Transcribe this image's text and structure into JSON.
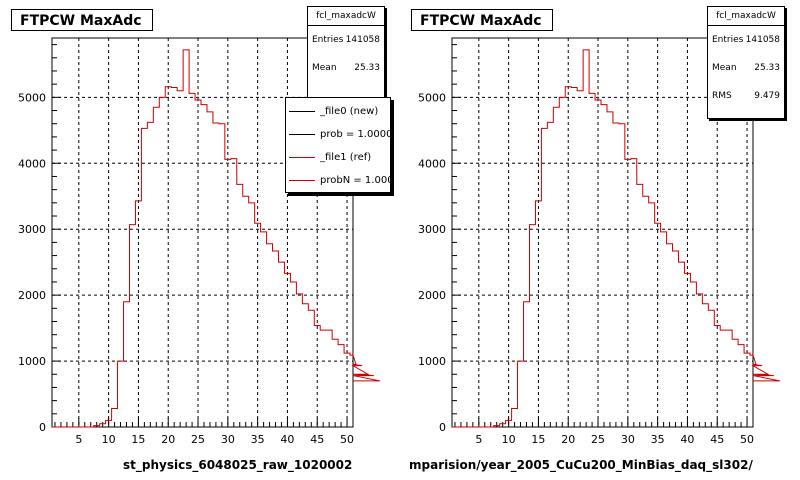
{
  "chart_data": [
    {
      "type": "histogram",
      "title": "FTPCW MaxAdc",
      "xlabel": "st_physics_6048025_raw_1020002",
      "ylabel": "",
      "xlim": [
        0.5,
        51
      ],
      "ylim": [
        0,
        5900
      ],
      "xticks": [
        5,
        10,
        15,
        20,
        25,
        30,
        35,
        40,
        45,
        50
      ],
      "yticks": [
        0,
        1000,
        2000,
        3000,
        4000,
        5000
      ],
      "grid": true,
      "stats": {
        "name": "fcl_maxadcW",
        "entries_label": "Entries",
        "entries": "141058",
        "mean_label": "Mean",
        "mean": "25.33"
      },
      "legend": {
        "placement": "top-right",
        "entries": [
          {
            "label": "_file0 (new)",
            "color": "#000000"
          },
          {
            "label": "prob = 1.000000",
            "color": "#000000"
          },
          {
            "label": "_file1 (ref)",
            "color": "#cc0000"
          },
          {
            "label": "probN = 1.000000",
            "color": "#cc0000"
          }
        ]
      },
      "series": [
        {
          "color": "#cc0000",
          "bin_edges_start": 0.5,
          "bin_width": 1,
          "values": [
            0,
            0,
            0,
            0,
            0,
            0,
            0,
            20,
            50,
            100,
            280,
            1000,
            1900,
            3070,
            3430,
            4530,
            4620,
            4850,
            5000,
            5160,
            5150,
            5100,
            5720,
            5060,
            4960,
            4890,
            4780,
            4610,
            4600,
            4060,
            4070,
            3680,
            3500,
            3400,
            3090,
            2960,
            2780,
            2670,
            2500,
            2330,
            2200,
            2020,
            1870,
            1770,
            1540,
            1470,
            1470,
            1330,
            1250,
            1120,
            1090,
            950,
            930,
            800,
            780,
            700
          ]
        }
      ]
    },
    {
      "type": "histogram",
      "title": "FTPCW MaxAdc",
      "xlabel": "mparision/year_2005_CuCu200_MinBias_daq_sl302/",
      "ylabel": "",
      "xlim": [
        0.5,
        51
      ],
      "ylim": [
        0,
        5900
      ],
      "xticks": [
        5,
        10,
        15,
        20,
        25,
        30,
        35,
        40,
        45,
        50
      ],
      "yticks": [
        0,
        1000,
        2000,
        3000,
        4000,
        5000
      ],
      "grid": true,
      "stats": {
        "name": "fcl_maxadcW",
        "entries_label": "Entries",
        "entries": "141058",
        "mean_label": "Mean",
        "mean": "25.33",
        "rms_label": "RMS",
        "rms": "9.479"
      },
      "series": [
        {
          "color": "#cc0000",
          "bin_edges_start": 0.5,
          "bin_width": 1,
          "values": [
            0,
            0,
            0,
            0,
            0,
            0,
            0,
            20,
            50,
            100,
            280,
            1000,
            1900,
            3070,
            3430,
            4530,
            4620,
            4850,
            5000,
            5160,
            5150,
            5100,
            5720,
            5060,
            4960,
            4890,
            4780,
            4610,
            4600,
            4060,
            4070,
            3680,
            3500,
            3400,
            3090,
            2960,
            2780,
            2670,
            2500,
            2330,
            2200,
            2020,
            1870,
            1770,
            1540,
            1470,
            1470,
            1330,
            1250,
            1120,
            1090,
            950,
            930,
            800,
            780,
            700
          ]
        }
      ]
    }
  ]
}
